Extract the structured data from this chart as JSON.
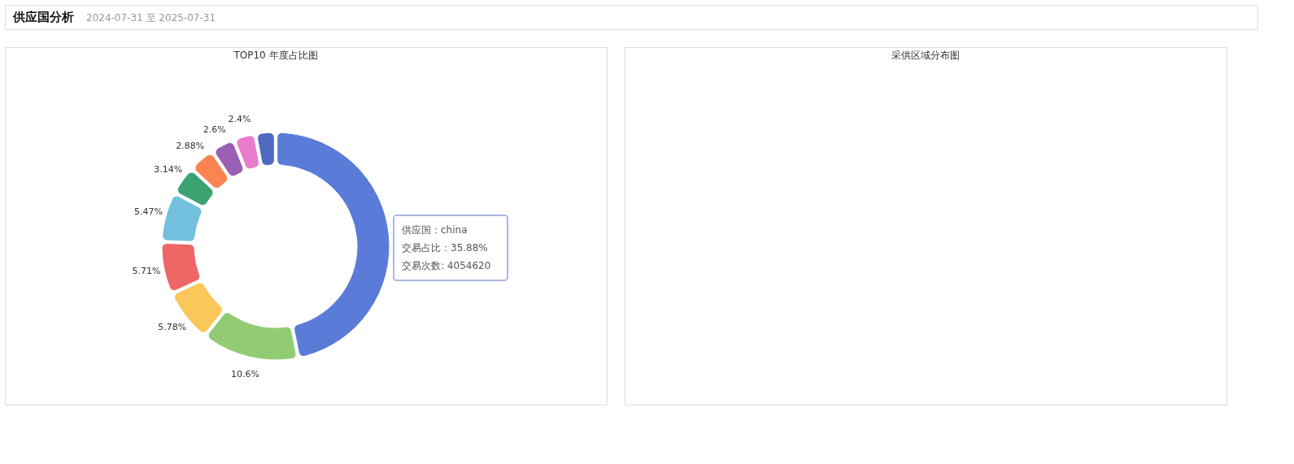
{
  "chart_data": [
    {
      "type": "other",
      "title": "供应国分析",
      "subtitle": "2024-07-31 至 2025-07-31"
    },
    {
      "type": "donut",
      "title": "TOP10 年度占比图",
      "categories": [
        null,
        null,
        null,
        null,
        null,
        null,
        null,
        null,
        null,
        null
      ],
      "values": [
        35.88,
        10.6,
        5.78,
        5.71,
        5.47,
        3.14,
        2.88,
        2.6,
        2.4,
        2.2
      ],
      "value_labels": [
        null,
        "10.6%",
        "5.78%",
        "5.71%",
        "5.47%",
        "3.14%",
        "2.88%",
        "2.6%",
        "2.4%",
        null
      ],
      "colors": [
        "#5b7bd8",
        "#91cc75",
        "#fac858",
        "#ee6666",
        "#73c0de",
        "#3ba272",
        "#fc8452",
        "#9a60b4",
        "#ea7ccc",
        "#4f6ac0"
      ],
      "annotations": [
        "供应国：china",
        "交易占比：35.88%",
        "交易次数: 4054620"
      ],
      "legend": false
    },
    {
      "type": "other",
      "title": "采供区域分布图"
    }
  ]
}
